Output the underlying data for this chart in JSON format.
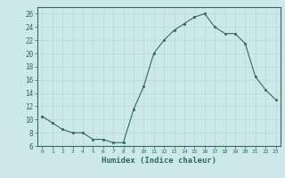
{
  "x": [
    0,
    1,
    2,
    3,
    4,
    5,
    6,
    7,
    8,
    9,
    10,
    11,
    12,
    13,
    14,
    15,
    16,
    17,
    18,
    19,
    20,
    21,
    22,
    23
  ],
  "y": [
    10.5,
    9.5,
    8.5,
    8.0,
    8.0,
    7.0,
    7.0,
    6.5,
    6.5,
    11.5,
    15.0,
    20.0,
    22.0,
    23.5,
    24.5,
    25.5,
    26.0,
    24.0,
    23.0,
    23.0,
    21.5,
    16.5,
    14.5,
    13.0
  ],
  "xlabel": "Humidex (Indice chaleur)",
  "ylim": [
    6,
    27
  ],
  "xlim": [
    -0.5,
    23.5
  ],
  "yticks": [
    6,
    8,
    10,
    12,
    14,
    16,
    18,
    20,
    22,
    24,
    26
  ],
  "xticks": [
    0,
    1,
    2,
    3,
    4,
    5,
    6,
    7,
    8,
    9,
    10,
    11,
    12,
    13,
    14,
    15,
    16,
    17,
    18,
    19,
    20,
    21,
    22,
    23
  ],
  "line_color": "#2e6b5e",
  "marker_color": "#2e6b5e",
  "bg_color": "#cde8e8",
  "grid_color": "#b8d8d8",
  "label_color": "#2e6b5e",
  "tick_color": "#2e6b5e",
  "spine_color": "#2e6b5e"
}
